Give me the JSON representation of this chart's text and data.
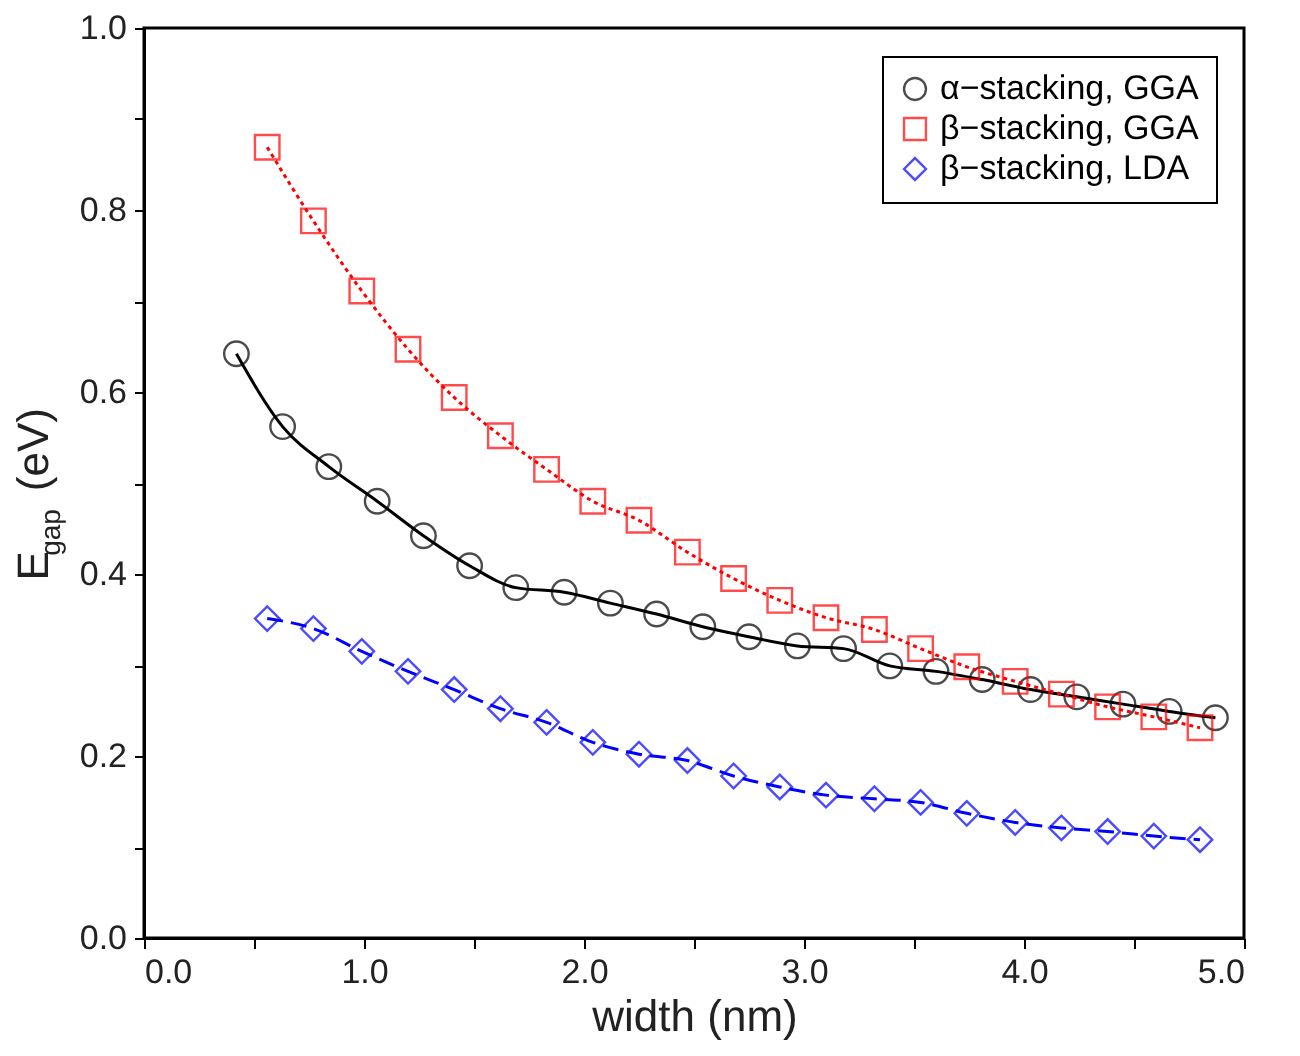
{
  "chart_data": {
    "type": "line",
    "xlabel": "width (nm)",
    "ylabel": "E$_{gap}$ (eV)",
    "xlim": [
      0,
      5
    ],
    "ylim": [
      0,
      1
    ],
    "xticks": [
      {
        "value": 0,
        "label": "0.0"
      },
      {
        "value": 0.5,
        "label": null
      },
      {
        "value": 1,
        "label": "1.0"
      },
      {
        "value": 1.5,
        "label": null
      },
      {
        "value": 2,
        "label": "2.0"
      },
      {
        "value": 2.5,
        "label": null
      },
      {
        "value": 3,
        "label": "3.0"
      },
      {
        "value": 3.5,
        "label": null
      },
      {
        "value": 4,
        "label": "4.0"
      },
      {
        "value": 4.5,
        "label": null
      },
      {
        "value": 5,
        "label": "5.0"
      }
    ],
    "yticks": [
      {
        "value": 0,
        "label": "0.0"
      },
      {
        "value": 0.1,
        "label": null
      },
      {
        "value": 0.2,
        "label": "0.2"
      },
      {
        "value": 0.3,
        "label": null
      },
      {
        "value": 0.4,
        "label": "0.4"
      },
      {
        "value": 0.5,
        "label": null
      },
      {
        "value": 0.6,
        "label": "0.6"
      },
      {
        "value": 0.7,
        "label": null
      },
      {
        "value": 0.8,
        "label": "0.8"
      },
      {
        "value": 0.9,
        "label": null
      },
      {
        "value": 1,
        "label": "1.0"
      }
    ],
    "grid": false,
    "legend": "top right",
    "series": [
      {
        "name": "α−stacking, GGA",
        "color": "#000000",
        "marker": "circle",
        "line_style": "solid",
        "x": [
          0.42,
          0.63,
          0.84,
          1.06,
          1.27,
          1.48,
          1.69,
          1.91,
          2.12,
          2.33,
          2.54,
          2.75,
          2.97,
          3.18,
          3.39,
          3.6,
          3.81,
          4.03,
          4.24,
          4.45,
          4.66,
          4.87
        ],
        "values": [
          0.642,
          0.562,
          0.518,
          0.48,
          0.442,
          0.409,
          0.385,
          0.38,
          0.368,
          0.356,
          0.342,
          0.331,
          0.321,
          0.318,
          0.299,
          0.293,
          0.284,
          0.273,
          0.265,
          0.257,
          0.249,
          0.242
        ]
      },
      {
        "name": "β−stacking, GGA",
        "color": "#ff0000",
        "marker": "square",
        "line_style": "dotted",
        "x": [
          0.56,
          0.77,
          0.99,
          1.2,
          1.41,
          1.62,
          1.83,
          2.04,
          2.25,
          2.47,
          2.68,
          2.89,
          3.1,
          3.32,
          3.53,
          3.74,
          3.96,
          4.17,
          4.38,
          4.59,
          4.8
        ],
        "values": [
          0.869,
          0.788,
          0.711,
          0.647,
          0.594,
          0.552,
          0.515,
          0.48,
          0.459,
          0.424,
          0.395,
          0.371,
          0.352,
          0.339,
          0.318,
          0.298,
          0.282,
          0.268,
          0.254,
          0.243,
          0.231
        ]
      },
      {
        "name": "β−stacking, LDA",
        "color": "#0000ff",
        "marker": "diamond",
        "line_style": "dashed",
        "x": [
          0.56,
          0.77,
          0.99,
          1.2,
          1.41,
          1.62,
          1.83,
          2.04,
          2.25,
          2.47,
          2.68,
          2.89,
          3.1,
          3.32,
          3.53,
          3.74,
          3.96,
          4.17,
          4.38,
          4.59,
          4.8
        ],
        "values": [
          0.351,
          0.34,
          0.315,
          0.293,
          0.273,
          0.252,
          0.237,
          0.215,
          0.202,
          0.195,
          0.178,
          0.166,
          0.157,
          0.153,
          0.149,
          0.137,
          0.127,
          0.121,
          0.117,
          0.112,
          0.108
        ]
      }
    ]
  }
}
